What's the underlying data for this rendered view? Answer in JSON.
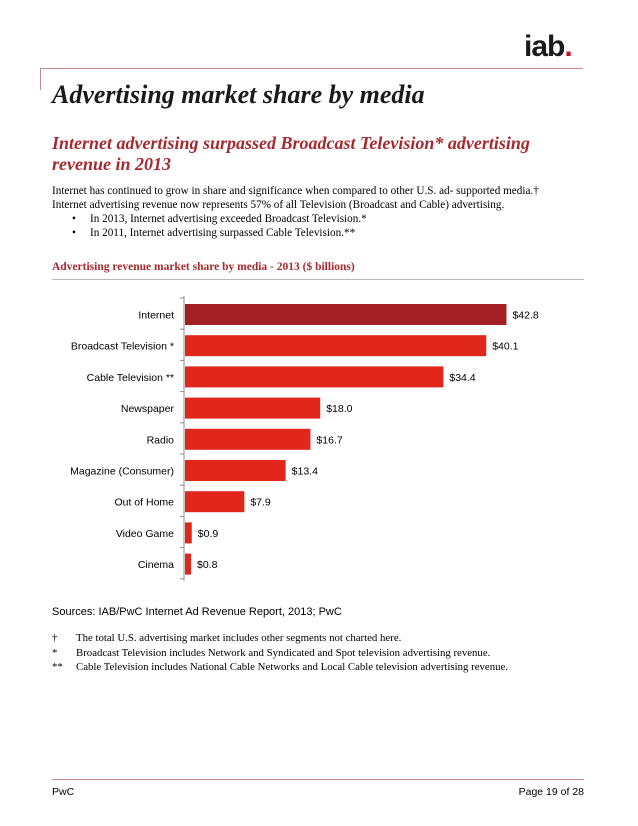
{
  "logo": {
    "text": "iab",
    "dot": "."
  },
  "header": {
    "title": "Advertising market share by media"
  },
  "subtitle": "Internet advertising surpassed Broadcast Television* advertising revenue in 2013",
  "intro": {
    "line1": "Internet has continued to grow in share and significance when compared to other U.S. ad- supported media.†",
    "line2": "Internet advertising revenue now represents 57% of all Television (Broadcast and Cable) advertising.",
    "bullets": [
      "In 2013, Internet advertising exceeded Broadcast Television.*",
      "In 2011, Internet advertising surpassed Cable Television.**"
    ]
  },
  "chart_title": "Advertising revenue market share by media - 2013 ($ billions)",
  "chart_data": {
    "type": "bar",
    "orientation": "horizontal",
    "title": "Advertising revenue market share by media - 2013 ($ billions)",
    "categories": [
      "Internet",
      "Broadcast Television *",
      "Cable Television **",
      "Newspaper",
      "Radio",
      "Magazine (Consumer)",
      "Out of Home",
      "Video Game",
      "Cinema"
    ],
    "values": [
      42.8,
      40.1,
      34.4,
      18.0,
      16.7,
      13.4,
      7.9,
      0.9,
      0.8
    ],
    "labels": [
      "$42.8",
      "$40.1",
      "$34.4",
      "$18.0",
      "$16.7",
      "$13.4",
      "$7.9",
      "$0.9",
      "$0.8"
    ],
    "xlim": [
      0,
      45
    ],
    "colors": {
      "highlight": "#a31f24",
      "default": "#e1261c"
    },
    "highlight_index": 0,
    "grid": false
  },
  "sources": "Sources: IAB/PwC Internet Ad Revenue Report, 2013; PwC",
  "footnotes": [
    {
      "mark": "†",
      "text": "The total U.S. advertising market includes other segments not charted here."
    },
    {
      "mark": "*",
      "text": "Broadcast Television includes Network and Syndicated and Spot television advertising revenue."
    },
    {
      "mark": "**",
      "text": "Cable Television includes National Cable Networks and Local Cable television advertising revenue."
    }
  ],
  "footer": {
    "left": "PwC",
    "right": "Page 19 of 28"
  }
}
